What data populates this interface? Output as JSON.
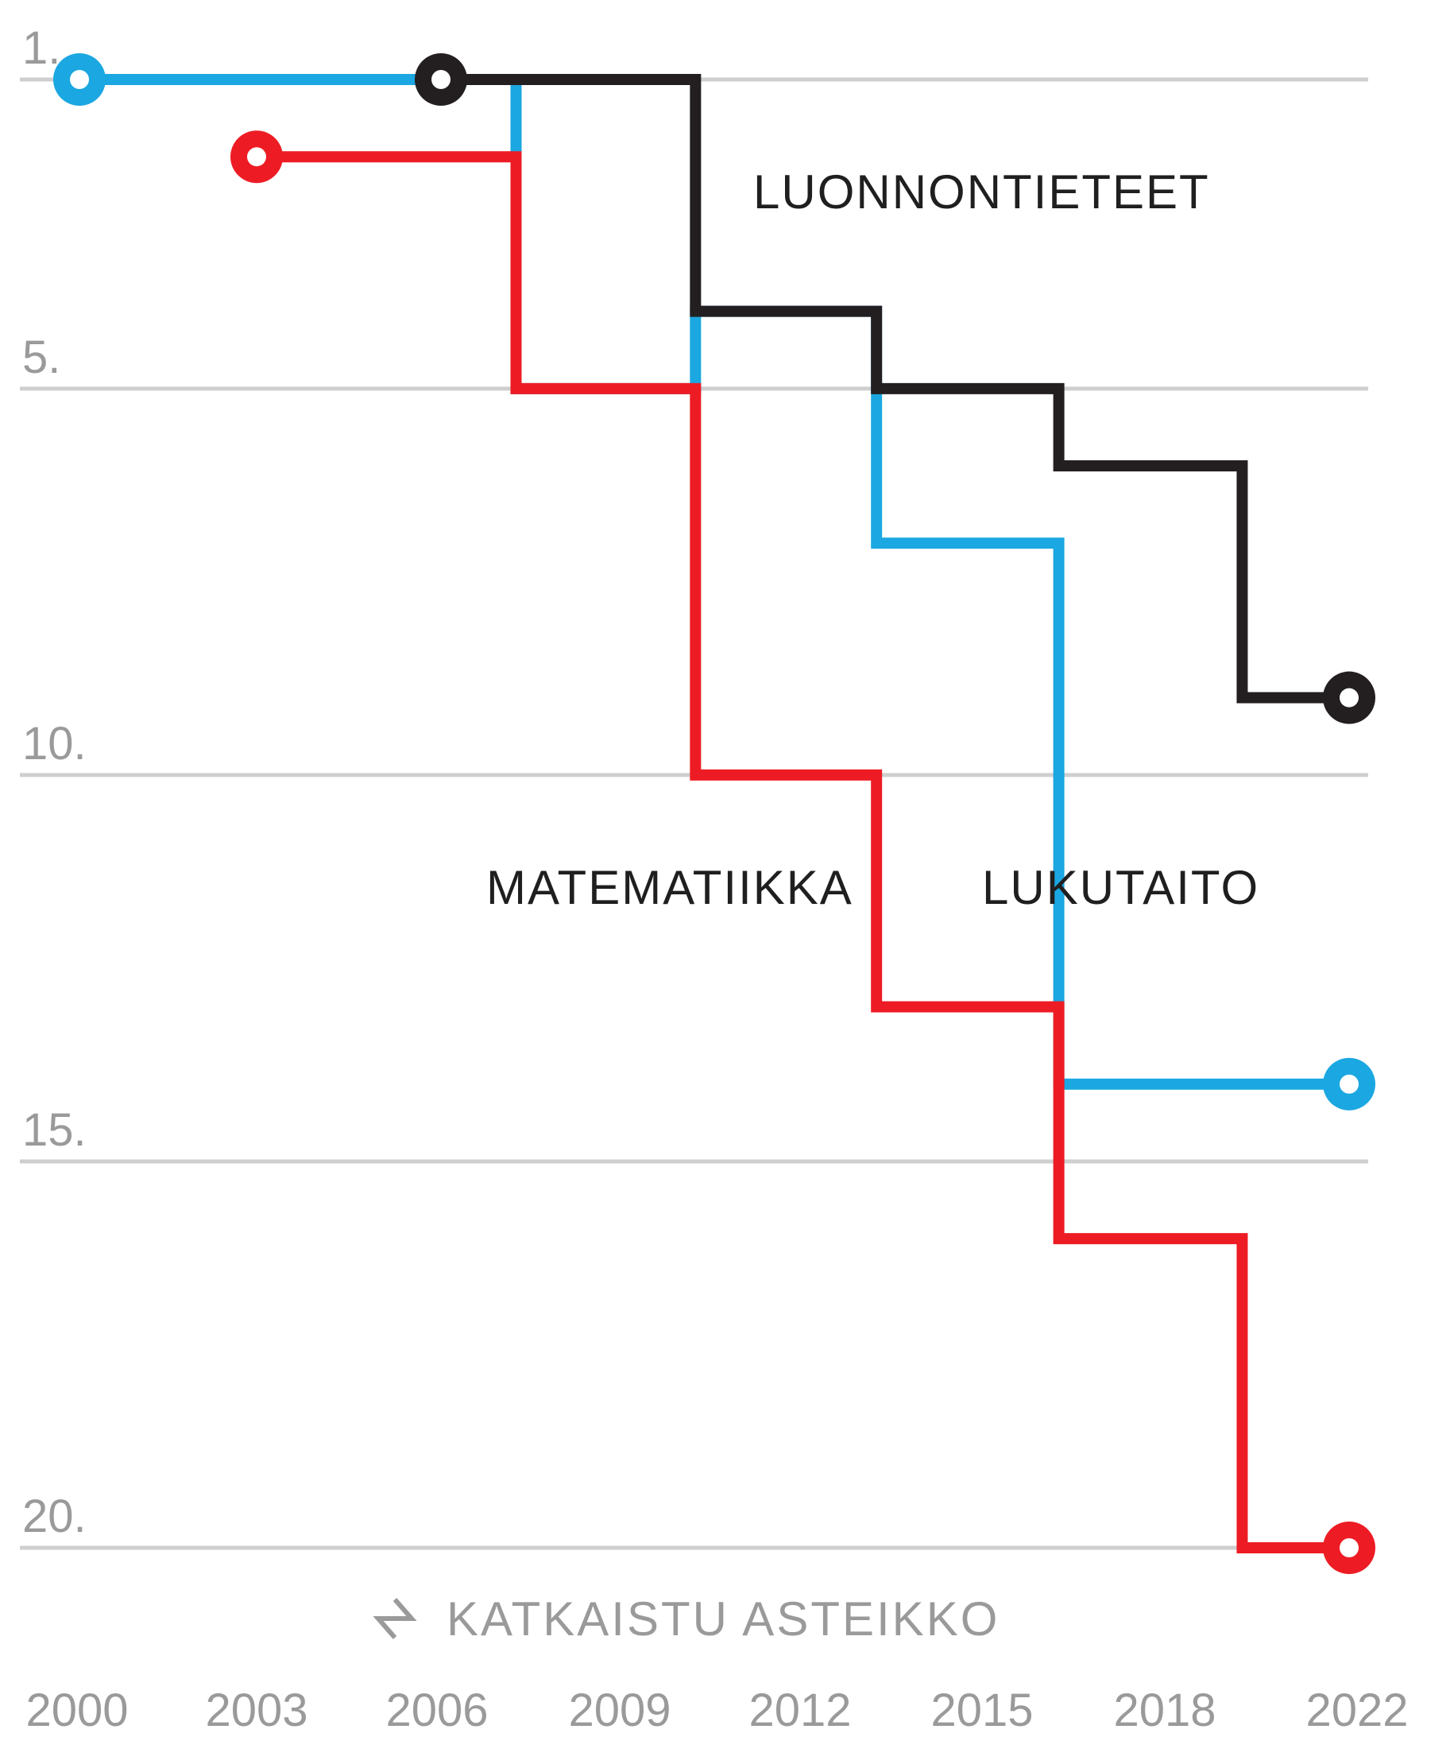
{
  "chart_data": {
    "type": "line",
    "step": true,
    "y_axis": {
      "reversed": true,
      "ticks": [
        {
          "value": 1,
          "label": "1."
        },
        {
          "value": 5,
          "label": "5."
        },
        {
          "value": 10,
          "label": "10."
        },
        {
          "value": 15,
          "label": "15."
        },
        {
          "value": 20,
          "label": "20."
        }
      ],
      "broken_scale": true
    },
    "x_axis": {
      "tick_labels": [
        "2000",
        "2003",
        "2006",
        "2009",
        "2012",
        "2015",
        "2018",
        "2022"
      ]
    },
    "grid": true,
    "scale_note": "KATKAISTU ASTEIKKO",
    "series": [
      {
        "name": "LUKUTAITO",
        "color": "#1ba7e1",
        "x": [
          "2000",
          "2003",
          "2006",
          "2009",
          "2012",
          "2015",
          "2018",
          "2022"
        ],
        "values": [
          1,
          1,
          1,
          5,
          4,
          7,
          14,
          14
        ]
      },
      {
        "name": "MATEMATIIKKA",
        "color": "#ed1c24",
        "x": [
          "2003",
          "2006",
          "2009",
          "2012",
          "2015",
          "2018",
          "2022"
        ],
        "values": [
          2,
          2,
          5,
          10,
          13,
          16,
          20
        ]
      },
      {
        "name": "LUONNONTIETEET",
        "color": "#231f20",
        "x": [
          "2006",
          "2009",
          "2012",
          "2015",
          "2018",
          "2022"
        ],
        "values": [
          1,
          1,
          4,
          5,
          6,
          9
        ]
      }
    ]
  }
}
